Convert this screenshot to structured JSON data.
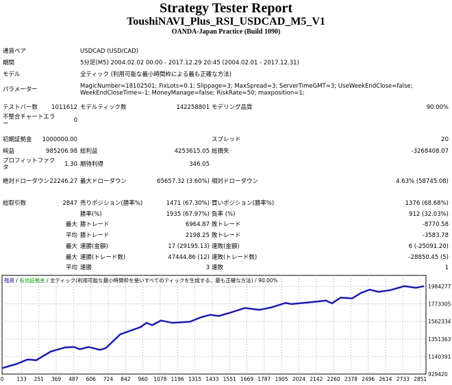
{
  "header": {
    "title": "Strategy Tester Report",
    "subtitle": "ToushiNAVI_Plus_RSI_USDCAD_M5_V1",
    "server": "OANDA-Japan Practice (Build 1090)"
  },
  "rows": [
    [
      "通貨ペア",
      "USDCAD (USD/CAD)"
    ],
    [
      "期間",
      "5分足(M5) 2004.02.02 00:00 - 2017.12.29 20:45 (2004.02.01 - 2017.12.31)"
    ],
    [
      "モデル",
      "全ティック (利用可能な最小時間枠による最も正確な方法)"
    ],
    [
      "パラメーター",
      "MagicNumber=18102501; FixLots=0.1; Slippage=3; MaxSpread=3; ServerTimeGMT=3; UseWeekEndClose=false; WeekEndCloseTime=-1; MoneyManage=false; RiskRate=50; maxposition=1;"
    ],
    [
      "テストバー数",
      "1011612",
      "モデルティック数",
      "142258801",
      "モデリング品質",
      "90.00%"
    ],
    [
      "不整合チャートエラー",
      "0"
    ],
    [
      "初期証拠金",
      "1000000.00",
      "",
      "",
      "スプレッド",
      "20"
    ],
    [
      "純益",
      "985206.98",
      "総利益",
      "4253615.05",
      "総損失",
      "-3268408.07"
    ],
    [
      "プロフィットファクタ",
      "1.30",
      "期待利得",
      "346.05"
    ],
    [
      "絶対ドローダウン",
      "22246.27",
      "最大ドローダウン",
      "65657.32 (3.60%)",
      "相対ドローダウン",
      "4.63% (58745.08)"
    ],
    [
      "総取引数",
      "2847",
      "売りポジション(勝率%)",
      "1471 (67.30%)",
      "買いポジション(勝率%)",
      "1376 (68.68%)"
    ],
    [
      "",
      "",
      "勝率(%)",
      "1935 (67.97%)",
      "負率 (%)",
      "912 (32.03%)"
    ],
    [
      "",
      "最大",
      "勝トレード",
      "6964.87",
      "敗トレード",
      "-8770.58"
    ],
    [
      "",
      "平均",
      "勝トレード",
      "2198.25",
      "敗トレード",
      "-3583.78"
    ],
    [
      "",
      "最大",
      "連勝(金額)",
      "17 (29195.13)",
      "連敗(金額)",
      "6 (-25091.20)"
    ],
    [
      "",
      "最大",
      "連勝(トレード数)",
      "47444.86 (12)",
      "連敗(トレード数)",
      "-28850.45 (5)"
    ],
    [
      "",
      "平均",
      "連勝",
      "3",
      "連敗",
      "1"
    ]
  ],
  "legend": {
    "balance": "残高",
    "sep1": " / ",
    "equity": "有効証拠金",
    "sep2": " / ",
    "model": "全ティック(利用可能な最小時間枠を使いすべてのティックを生成する、最も正確な方法)",
    "sep3": " / ",
    "quality": "90.00%"
  },
  "colors": {
    "balance": "#0000A0",
    "equity": "#00A000",
    "grid": "#C8C8C8"
  },
  "chart_data": {
    "type": "line",
    "series": [
      {
        "values": [
          [
            0,
            1000000
          ],
          [
            95,
            1048000
          ],
          [
            174,
            1104000
          ],
          [
            233,
            1096000
          ],
          [
            332,
            1200000
          ],
          [
            431,
            1250000
          ],
          [
            490,
            1255000
          ],
          [
            530,
            1228000
          ],
          [
            589,
            1255000
          ],
          [
            668,
            1220000
          ],
          [
            708,
            1242000
          ],
          [
            806,
            1407000
          ],
          [
            945,
            1495000
          ],
          [
            984,
            1545000
          ],
          [
            1024,
            1518000
          ],
          [
            1083,
            1573000
          ],
          [
            1162,
            1545000
          ],
          [
            1281,
            1559000
          ],
          [
            1360,
            1614000
          ],
          [
            1419,
            1642000
          ],
          [
            1478,
            1628000
          ],
          [
            1557,
            1669000
          ],
          [
            1656,
            1724000
          ],
          [
            1755,
            1702000
          ],
          [
            1834,
            1730000
          ],
          [
            1933,
            1785000
          ],
          [
            1972,
            1771000
          ],
          [
            2051,
            1785000
          ],
          [
            2150,
            1802000
          ],
          [
            2209,
            1813000
          ],
          [
            2249,
            1780000
          ],
          [
            2308,
            1848000
          ],
          [
            2387,
            1840000
          ],
          [
            2446,
            1904000
          ],
          [
            2506,
            1945000
          ],
          [
            2565,
            1918000
          ],
          [
            2644,
            1937000
          ],
          [
            2743,
            1987000
          ],
          [
            2822,
            1967000
          ],
          [
            2877,
            1987000
          ]
        ]
      }
    ],
    "xticks": [
      "0",
      "133",
      "251",
      "369",
      "487",
      "606",
      "724",
      "842",
      "960",
      "1078",
      "1196",
      "1315",
      "1433",
      "1551",
      "1669",
      "1787",
      "1905",
      "2024",
      "2142",
      "2260",
      "2378",
      "2496",
      "2614",
      "2733",
      "2851"
    ],
    "yticks": [
      "929420",
      "1140391",
      "1351363",
      "1562334",
      "1773305",
      "1984277"
    ],
    "xlim": [
      0,
      2890
    ],
    "ylim": [
      929420,
      2010000
    ],
    "grid": true
  }
}
